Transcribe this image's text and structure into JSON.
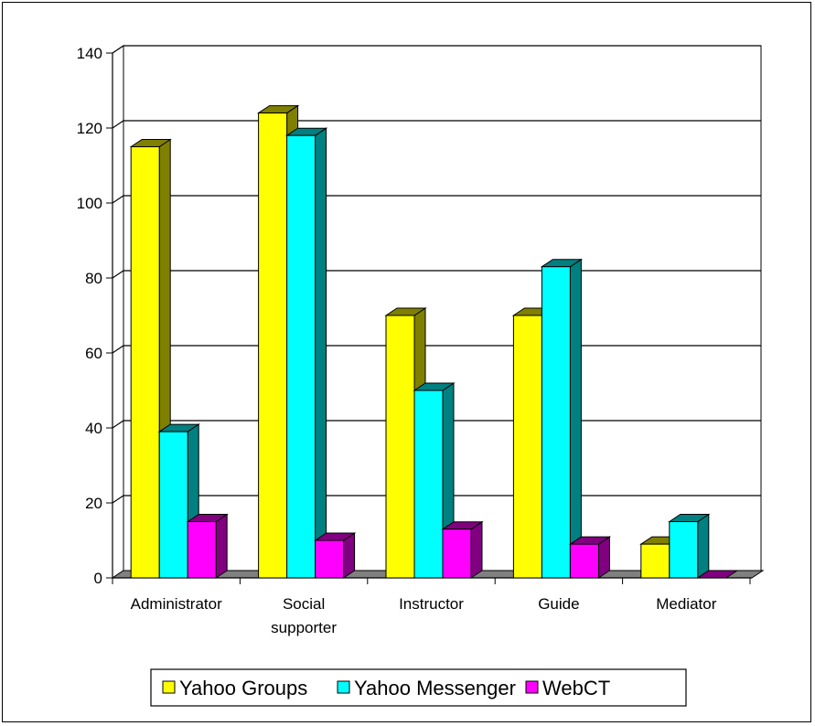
{
  "chart_data": {
    "type": "bar",
    "title": "",
    "xlabel": "",
    "ylabel": "",
    "ylim": [
      0,
      140
    ],
    "yticks": [
      0,
      20,
      40,
      60,
      80,
      100,
      120,
      140
    ],
    "grid": true,
    "legend_position": "bottom",
    "categories": [
      [
        "Administrator"
      ],
      [
        "Social",
        "supporter"
      ],
      [
        "Instructor"
      ],
      [
        "Guide"
      ],
      [
        "Mediator"
      ]
    ],
    "series": [
      {
        "name": "Yahoo Groups",
        "color": "#ffff00",
        "side_color": "#808000",
        "values": [
          115,
          124,
          70,
          70,
          9
        ]
      },
      {
        "name": "Yahoo Messenger",
        "color": "#00ffff",
        "side_color": "#008080",
        "values": [
          39,
          118,
          50,
          83,
          15
        ]
      },
      {
        "name": "WebCT",
        "color": "#ff00ff",
        "side_color": "#800080",
        "values": [
          15,
          10,
          13,
          9,
          0
        ]
      }
    ],
    "floor_color": "#808080",
    "wall_color": "#ffffff"
  }
}
